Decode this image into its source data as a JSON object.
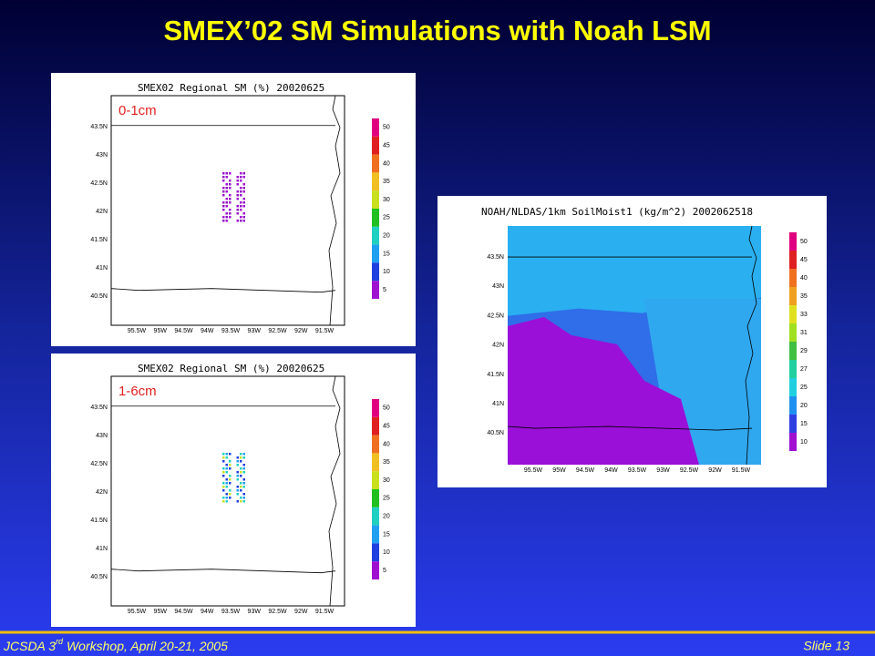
{
  "title": "SMEX’02 SM Simulations with Noah LSM",
  "panels": [
    {
      "title": "SMEX02 Regional SM (%) 20020625",
      "label": "0-1cm",
      "lat_labels": [
        "43.5N",
        "43N",
        "42.5N",
        "42N",
        "41.5N",
        "41N",
        "40.5N"
      ],
      "lon_labels": [
        "95.5W",
        "95W",
        "94.5W",
        "94W",
        "93.5W",
        "93W",
        "92.5W",
        "92W",
        "91.5W"
      ],
      "colorbar": [
        "50",
        "45",
        "40",
        "35",
        "30",
        "25",
        "20",
        "15",
        "10",
        "5"
      ]
    },
    {
      "title": "SMEX02 Regional SM (%) 20020625",
      "label": "1-6cm",
      "lat_labels": [
        "43.5N",
        "43N",
        "42.5N",
        "42N",
        "41.5N",
        "41N",
        "40.5N"
      ],
      "lon_labels": [
        "95.5W",
        "95W",
        "94.5W",
        "94W",
        "93.5W",
        "93W",
        "92.5W",
        "92W",
        "91.5W"
      ],
      "colorbar": [
        "50",
        "45",
        "40",
        "35",
        "30",
        "25",
        "20",
        "15",
        "10",
        "5"
      ]
    },
    {
      "title": "NOAH/NLDAS/1km SoilMoist1 (kg/m^2) 2002062518",
      "lat_labels": [
        "43.5N",
        "43N",
        "42.5N",
        "42N",
        "41.5N",
        "41N",
        "40.5N"
      ],
      "lon_labels": [
        "95.5W",
        "95W",
        "94.5W",
        "94W",
        "93.5W",
        "93W",
        "92.5W",
        "92W",
        "91.5W"
      ],
      "colorbar": [
        "50",
        "45",
        "40",
        "35",
        "33",
        "31",
        "29",
        "27",
        "25",
        "20",
        "15",
        "10"
      ]
    }
  ],
  "footer": {
    "left": [
      "JCSDA 3",
      "rd",
      " Workshop, April 20-21, 2005"
    ],
    "slide": "Slide 13"
  }
}
